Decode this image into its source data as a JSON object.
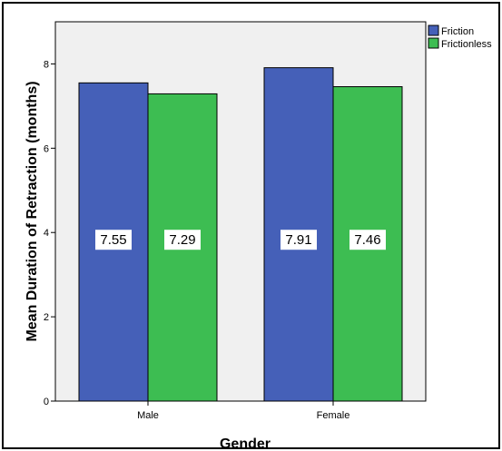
{
  "chart_data": {
    "type": "bar",
    "title": "",
    "xlabel": "Gender",
    "ylabel": "Mean Duration of Retraction (months)",
    "categories": [
      "Male",
      "Female"
    ],
    "series": [
      {
        "name": "Friction",
        "values": [
          7.55,
          7.91
        ],
        "data_labels": [
          "7.55",
          "7.91"
        ],
        "color": "#4560b8"
      },
      {
        "name": "Frictionless",
        "values": [
          7.29,
          7.46
        ],
        "data_labels": [
          "7.29",
          "7.46"
        ],
        "color": "#3dbd52"
      }
    ],
    "ylim": [
      0,
      9
    ],
    "yticks": [
      0,
      2,
      4,
      6,
      8
    ],
    "ytick_labels": [
      "0",
      "2",
      "4",
      "6",
      "8"
    ],
    "legend_position": "top-right",
    "grid": false,
    "plot_background": "#f0f0f0"
  }
}
